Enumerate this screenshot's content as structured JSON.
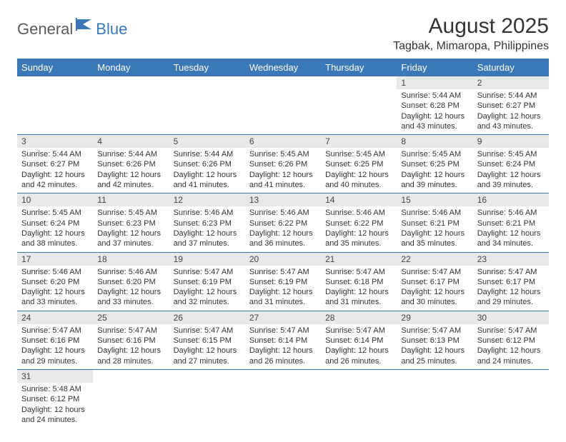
{
  "logo": {
    "part1": "General",
    "part2": "Blue"
  },
  "title": "August 2025",
  "location": "Tagbak, Mimaropa, Philippines",
  "colors": {
    "header_bg": "#3b78b8",
    "header_text": "#ffffff",
    "daynum_bg": "#e8e8e8",
    "row_border": "#3b78b8",
    "logo_gray": "#5a5a5a",
    "logo_blue": "#3b78b8"
  },
  "weekdays": [
    "Sunday",
    "Monday",
    "Tuesday",
    "Wednesday",
    "Thursday",
    "Friday",
    "Saturday"
  ],
  "weeks": [
    [
      null,
      null,
      null,
      null,
      null,
      {
        "d": "1",
        "sr": "Sunrise: 5:44 AM",
        "ss": "Sunset: 6:28 PM",
        "dl1": "Daylight: 12 hours",
        "dl2": "and 43 minutes."
      },
      {
        "d": "2",
        "sr": "Sunrise: 5:44 AM",
        "ss": "Sunset: 6:27 PM",
        "dl1": "Daylight: 12 hours",
        "dl2": "and 43 minutes."
      }
    ],
    [
      {
        "d": "3",
        "sr": "Sunrise: 5:44 AM",
        "ss": "Sunset: 6:27 PM",
        "dl1": "Daylight: 12 hours",
        "dl2": "and 42 minutes."
      },
      {
        "d": "4",
        "sr": "Sunrise: 5:44 AM",
        "ss": "Sunset: 6:26 PM",
        "dl1": "Daylight: 12 hours",
        "dl2": "and 42 minutes."
      },
      {
        "d": "5",
        "sr": "Sunrise: 5:44 AM",
        "ss": "Sunset: 6:26 PM",
        "dl1": "Daylight: 12 hours",
        "dl2": "and 41 minutes."
      },
      {
        "d": "6",
        "sr": "Sunrise: 5:45 AM",
        "ss": "Sunset: 6:26 PM",
        "dl1": "Daylight: 12 hours",
        "dl2": "and 41 minutes."
      },
      {
        "d": "7",
        "sr": "Sunrise: 5:45 AM",
        "ss": "Sunset: 6:25 PM",
        "dl1": "Daylight: 12 hours",
        "dl2": "and 40 minutes."
      },
      {
        "d": "8",
        "sr": "Sunrise: 5:45 AM",
        "ss": "Sunset: 6:25 PM",
        "dl1": "Daylight: 12 hours",
        "dl2": "and 39 minutes."
      },
      {
        "d": "9",
        "sr": "Sunrise: 5:45 AM",
        "ss": "Sunset: 6:24 PM",
        "dl1": "Daylight: 12 hours",
        "dl2": "and 39 minutes."
      }
    ],
    [
      {
        "d": "10",
        "sr": "Sunrise: 5:45 AM",
        "ss": "Sunset: 6:24 PM",
        "dl1": "Daylight: 12 hours",
        "dl2": "and 38 minutes."
      },
      {
        "d": "11",
        "sr": "Sunrise: 5:45 AM",
        "ss": "Sunset: 6:23 PM",
        "dl1": "Daylight: 12 hours",
        "dl2": "and 37 minutes."
      },
      {
        "d": "12",
        "sr": "Sunrise: 5:46 AM",
        "ss": "Sunset: 6:23 PM",
        "dl1": "Daylight: 12 hours",
        "dl2": "and 37 minutes."
      },
      {
        "d": "13",
        "sr": "Sunrise: 5:46 AM",
        "ss": "Sunset: 6:22 PM",
        "dl1": "Daylight: 12 hours",
        "dl2": "and 36 minutes."
      },
      {
        "d": "14",
        "sr": "Sunrise: 5:46 AM",
        "ss": "Sunset: 6:22 PM",
        "dl1": "Daylight: 12 hours",
        "dl2": "and 35 minutes."
      },
      {
        "d": "15",
        "sr": "Sunrise: 5:46 AM",
        "ss": "Sunset: 6:21 PM",
        "dl1": "Daylight: 12 hours",
        "dl2": "and 35 minutes."
      },
      {
        "d": "16",
        "sr": "Sunrise: 5:46 AM",
        "ss": "Sunset: 6:21 PM",
        "dl1": "Daylight: 12 hours",
        "dl2": "and 34 minutes."
      }
    ],
    [
      {
        "d": "17",
        "sr": "Sunrise: 5:46 AM",
        "ss": "Sunset: 6:20 PM",
        "dl1": "Daylight: 12 hours",
        "dl2": "and 33 minutes."
      },
      {
        "d": "18",
        "sr": "Sunrise: 5:46 AM",
        "ss": "Sunset: 6:20 PM",
        "dl1": "Daylight: 12 hours",
        "dl2": "and 33 minutes."
      },
      {
        "d": "19",
        "sr": "Sunrise: 5:47 AM",
        "ss": "Sunset: 6:19 PM",
        "dl1": "Daylight: 12 hours",
        "dl2": "and 32 minutes."
      },
      {
        "d": "20",
        "sr": "Sunrise: 5:47 AM",
        "ss": "Sunset: 6:19 PM",
        "dl1": "Daylight: 12 hours",
        "dl2": "and 31 minutes."
      },
      {
        "d": "21",
        "sr": "Sunrise: 5:47 AM",
        "ss": "Sunset: 6:18 PM",
        "dl1": "Daylight: 12 hours",
        "dl2": "and 31 minutes."
      },
      {
        "d": "22",
        "sr": "Sunrise: 5:47 AM",
        "ss": "Sunset: 6:17 PM",
        "dl1": "Daylight: 12 hours",
        "dl2": "and 30 minutes."
      },
      {
        "d": "23",
        "sr": "Sunrise: 5:47 AM",
        "ss": "Sunset: 6:17 PM",
        "dl1": "Daylight: 12 hours",
        "dl2": "and 29 minutes."
      }
    ],
    [
      {
        "d": "24",
        "sr": "Sunrise: 5:47 AM",
        "ss": "Sunset: 6:16 PM",
        "dl1": "Daylight: 12 hours",
        "dl2": "and 29 minutes."
      },
      {
        "d": "25",
        "sr": "Sunrise: 5:47 AM",
        "ss": "Sunset: 6:16 PM",
        "dl1": "Daylight: 12 hours",
        "dl2": "and 28 minutes."
      },
      {
        "d": "26",
        "sr": "Sunrise: 5:47 AM",
        "ss": "Sunset: 6:15 PM",
        "dl1": "Daylight: 12 hours",
        "dl2": "and 27 minutes."
      },
      {
        "d": "27",
        "sr": "Sunrise: 5:47 AM",
        "ss": "Sunset: 6:14 PM",
        "dl1": "Daylight: 12 hours",
        "dl2": "and 26 minutes."
      },
      {
        "d": "28",
        "sr": "Sunrise: 5:47 AM",
        "ss": "Sunset: 6:14 PM",
        "dl1": "Daylight: 12 hours",
        "dl2": "and 26 minutes."
      },
      {
        "d": "29",
        "sr": "Sunrise: 5:47 AM",
        "ss": "Sunset: 6:13 PM",
        "dl1": "Daylight: 12 hours",
        "dl2": "and 25 minutes."
      },
      {
        "d": "30",
        "sr": "Sunrise: 5:47 AM",
        "ss": "Sunset: 6:12 PM",
        "dl1": "Daylight: 12 hours",
        "dl2": "and 24 minutes."
      }
    ],
    [
      {
        "d": "31",
        "sr": "Sunrise: 5:48 AM",
        "ss": "Sunset: 6:12 PM",
        "dl1": "Daylight: 12 hours",
        "dl2": "and 24 minutes."
      },
      null,
      null,
      null,
      null,
      null,
      null
    ]
  ]
}
